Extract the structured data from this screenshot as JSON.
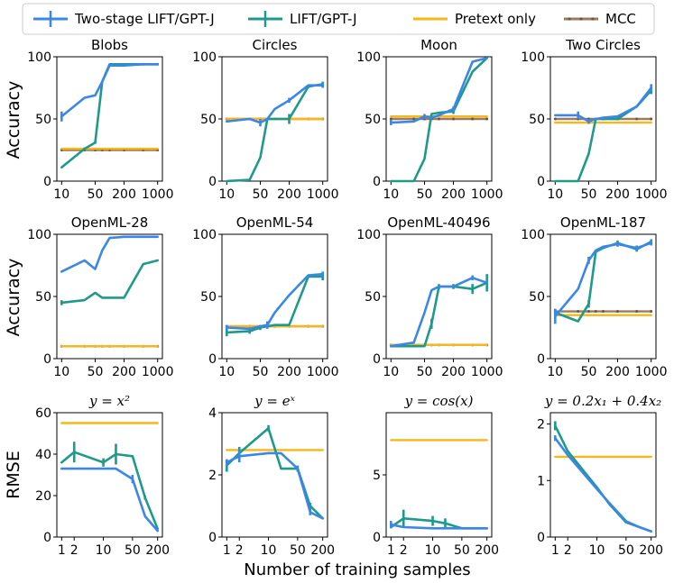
{
  "colors": {
    "two_stage": "#3b87e8",
    "lift": "#1f9a8a",
    "pretext": "#f6b718",
    "mcc": "#9a7a60"
  },
  "legend": {
    "items": [
      {
        "key": "two_stage",
        "label": "Two-stage LIFT/GPT-J",
        "marker": "errorbar-line"
      },
      {
        "key": "lift",
        "label": "LIFT/GPT-J",
        "marker": "errorbar-line"
      },
      {
        "key": "pretext",
        "label": "Pretext only",
        "marker": "line"
      },
      {
        "key": "mcc",
        "label": "MCC",
        "marker": "dotted-line"
      }
    ]
  },
  "row_ylabels": [
    "Accuracy",
    "Accuracy",
    "RMSE"
  ],
  "xlabel": "Number of training samples",
  "chart_data": [
    {
      "type": "line",
      "title": "Blobs",
      "row": 0,
      "col": 0,
      "x": [
        10,
        30,
        50,
        70,
        100,
        200,
        500,
        1000
      ],
      "xticks": [
        10,
        50,
        200,
        1000
      ],
      "ylim": [
        0,
        100
      ],
      "yticks": [
        0,
        50,
        100
      ],
      "series": [
        {
          "key": "two_stage",
          "values": [
            52,
            67,
            69,
            80,
            93,
            93,
            94,
            94
          ],
          "err": [
            4,
            0,
            0,
            0,
            1,
            1,
            1,
            1
          ]
        },
        {
          "key": "lift",
          "values": [
            11,
            26,
            31,
            80,
            94,
            94,
            94,
            94
          ],
          "err": [
            0,
            1,
            1,
            0,
            0,
            0,
            0,
            0
          ]
        },
        {
          "key": "pretext",
          "values": [
            26,
            26,
            26,
            26,
            26,
            26,
            26,
            26
          ]
        },
        {
          "key": "mcc",
          "values": [
            25,
            25,
            25,
            25,
            25,
            25,
            25,
            25
          ]
        }
      ]
    },
    {
      "type": "line",
      "title": "Circles",
      "row": 0,
      "col": 1,
      "x": [
        10,
        30,
        50,
        70,
        100,
        200,
        500,
        1000
      ],
      "xticks": [
        10,
        50,
        200,
        1000
      ],
      "ylim": [
        0,
        100
      ],
      "yticks": [
        0,
        50,
        100
      ],
      "series": [
        {
          "key": "two_stage",
          "values": [
            48,
            50,
            47,
            50,
            58,
            65,
            77,
            77
          ],
          "err": [
            0,
            0,
            3,
            0,
            0,
            2,
            0,
            2
          ]
        },
        {
          "key": "lift",
          "values": [
            0,
            1,
            19,
            50,
            50,
            50,
            76,
            78
          ],
          "err": [
            0,
            0,
            0,
            0,
            0,
            4,
            1,
            2
          ]
        },
        {
          "key": "pretext",
          "values": [
            50,
            50,
            50,
            50,
            50,
            50,
            50,
            50
          ]
        },
        {
          "key": "mcc",
          "values": [
            50,
            50,
            50,
            50,
            50,
            50,
            50,
            50
          ]
        }
      ]
    },
    {
      "type": "line",
      "title": "Moon",
      "row": 0,
      "col": 2,
      "x": [
        10,
        30,
        50,
        70,
        100,
        200,
        500,
        1000
      ],
      "xticks": [
        10,
        50,
        200,
        1000
      ],
      "ylim": [
        0,
        100
      ],
      "yticks": [
        0,
        50,
        100
      ],
      "series": [
        {
          "key": "two_stage",
          "values": [
            47,
            48,
            52,
            51,
            53,
            58,
            96,
            99
          ],
          "err": [
            2,
            0,
            2,
            0,
            0,
            2,
            0,
            0
          ]
        },
        {
          "key": "lift",
          "values": [
            0,
            0,
            18,
            54,
            55,
            56,
            88,
            99
          ],
          "err": [
            0,
            0,
            0,
            0,
            0,
            2,
            0,
            0
          ]
        },
        {
          "key": "pretext",
          "values": [
            52,
            52,
            52,
            52,
            52,
            52,
            52,
            52
          ]
        },
        {
          "key": "mcc",
          "values": [
            50,
            50,
            50,
            50,
            50,
            50,
            50,
            50
          ]
        }
      ]
    },
    {
      "type": "line",
      "title": "Two Circles",
      "row": 0,
      "col": 3,
      "x": [
        10,
        30,
        50,
        70,
        100,
        200,
        500,
        1000
      ],
      "xticks": [
        10,
        50,
        200,
        1000
      ],
      "ylim": [
        0,
        100
      ],
      "yticks": [
        0,
        50,
        100
      ],
      "series": [
        {
          "key": "two_stage",
          "values": [
            53,
            53,
            48,
            50,
            51,
            52,
            60,
            75
          ],
          "err": [
            0,
            3,
            2,
            0,
            0,
            0,
            0,
            3
          ]
        },
        {
          "key": "lift",
          "values": [
            0,
            0,
            22,
            50,
            50,
            50,
            60,
            73
          ],
          "err": [
            0,
            0,
            0,
            0,
            0,
            0,
            0,
            3
          ]
        },
        {
          "key": "pretext",
          "values": [
            47,
            47,
            47,
            47,
            47,
            47,
            47,
            47
          ]
        },
        {
          "key": "mcc",
          "values": [
            50,
            50,
            50,
            50,
            50,
            50,
            50,
            50
          ]
        }
      ]
    },
    {
      "type": "line",
      "title": "OpenML-28",
      "row": 1,
      "col": 0,
      "x": [
        10,
        30,
        50,
        70,
        100,
        200,
        500,
        1000
      ],
      "xticks": [
        10,
        50,
        200,
        1000
      ],
      "ylim": [
        0,
        100
      ],
      "yticks": [
        0,
        50,
        100
      ],
      "series": [
        {
          "key": "two_stage",
          "values": [
            70,
            79,
            72,
            87,
            97,
            98,
            98,
            98
          ],
          "err": [
            0,
            0,
            0,
            0,
            0,
            0,
            0,
            0
          ]
        },
        {
          "key": "lift",
          "values": [
            45,
            47,
            53,
            49,
            49,
            49,
            76,
            79
          ],
          "err": [
            2,
            0,
            0,
            0,
            0,
            0,
            0,
            0
          ]
        },
        {
          "key": "pretext",
          "values": [
            10,
            10,
            10,
            10,
            10,
            10,
            10,
            10
          ]
        },
        {
          "key": "mcc",
          "values": [
            10,
            10,
            10,
            10,
            10,
            10,
            10,
            10
          ]
        }
      ]
    },
    {
      "type": "line",
      "title": "OpenML-54",
      "row": 1,
      "col": 1,
      "x": [
        10,
        30,
        50,
        70,
        100,
        200,
        500,
        1000
      ],
      "xticks": [
        10,
        50,
        200,
        1000
      ],
      "ylim": [
        0,
        100
      ],
      "yticks": [
        0,
        50,
        100
      ],
      "series": [
        {
          "key": "two_stage",
          "values": [
            25,
            24,
            26,
            27,
            37,
            51,
            67,
            68
          ],
          "err": [
            2,
            0,
            0,
            3,
            0,
            0,
            0,
            2
          ]
        },
        {
          "key": "lift",
          "values": [
            21,
            22,
            25,
            26,
            27,
            27,
            66,
            66
          ],
          "err": [
            3,
            2,
            2,
            0,
            0,
            0,
            0,
            3
          ]
        },
        {
          "key": "pretext",
          "values": [
            26,
            26,
            26,
            26,
            26,
            26,
            26,
            26
          ]
        },
        {
          "key": "mcc",
          "values": [
            26,
            26,
            26,
            26,
            26,
            26,
            26,
            26
          ]
        }
      ]
    },
    {
      "type": "line",
      "title": "OpenML-40496",
      "row": 1,
      "col": 2,
      "x": [
        10,
        30,
        50,
        70,
        100,
        200,
        500,
        1000
      ],
      "xticks": [
        10,
        50,
        200,
        1000
      ],
      "ylim": [
        0,
        100
      ],
      "yticks": [
        0,
        50,
        100
      ],
      "series": [
        {
          "key": "two_stage",
          "values": [
            10,
            13,
            37,
            55,
            58,
            58,
            65,
            61
          ],
          "err": [
            0,
            0,
            0,
            0,
            0,
            0,
            2,
            2
          ]
        },
        {
          "key": "lift",
          "values": [
            10,
            10,
            10,
            28,
            58,
            58,
            56,
            61
          ],
          "err": [
            0,
            0,
            0,
            4,
            2,
            2,
            4,
            7
          ]
        },
        {
          "key": "pretext",
          "values": [
            11,
            11,
            11,
            11,
            11,
            11,
            11,
            11
          ]
        },
        {
          "key": "mcc",
          "values": [
            11,
            11,
            11,
            11,
            11,
            11,
            11,
            11
          ]
        }
      ]
    },
    {
      "type": "line",
      "title": "OpenML-187",
      "row": 1,
      "col": 3,
      "x": [
        10,
        30,
        50,
        70,
        100,
        200,
        500,
        1000
      ],
      "xticks": [
        10,
        50,
        200,
        1000
      ],
      "ylim": [
        0,
        100
      ],
      "yticks": [
        0,
        50,
        100
      ],
      "series": [
        {
          "key": "two_stage",
          "values": [
            34,
            56,
            79,
            87,
            90,
            92,
            89,
            93
          ],
          "err": [
            6,
            0,
            3,
            0,
            0,
            2,
            2,
            2
          ]
        },
        {
          "key": "lift",
          "values": [
            37,
            30,
            44,
            86,
            89,
            93,
            88,
            94
          ],
          "err": [
            3,
            0,
            3,
            0,
            0,
            2,
            2,
            2
          ]
        },
        {
          "key": "pretext",
          "values": [
            35,
            35,
            35,
            35,
            35,
            35,
            35,
            35
          ]
        },
        {
          "key": "mcc",
          "values": [
            38,
            38,
            38,
            38,
            38,
            38,
            38,
            38
          ]
        }
      ]
    },
    {
      "type": "line",
      "title": "y = x²",
      "row": 2,
      "col": 0,
      "x": [
        1,
        2,
        10,
        20,
        50,
        100,
        200
      ],
      "xticks": [
        1,
        2,
        10,
        50,
        200
      ],
      "ylim": [
        0,
        60
      ],
      "yticks": [
        0,
        20,
        40,
        60
      ],
      "series": [
        {
          "key": "two_stage",
          "values": [
            33,
            33,
            33,
            33,
            28,
            10,
            3
          ],
          "err": [
            0,
            0,
            0,
            0,
            2,
            0,
            0
          ]
        },
        {
          "key": "lift",
          "values": [
            36,
            41,
            36,
            40,
            39,
            19,
            4
          ],
          "err": [
            0,
            5,
            2,
            5,
            0,
            1,
            0
          ]
        },
        {
          "key": "pretext",
          "values": [
            55,
            55,
            55,
            55,
            55,
            55,
            55
          ]
        }
      ]
    },
    {
      "type": "line",
      "title": "y = eˣ",
      "row": 2,
      "col": 1,
      "x": [
        1,
        2,
        10,
        20,
        50,
        100,
        200
      ],
      "xticks": [
        1,
        2,
        10,
        50,
        200
      ],
      "ylim": [
        0,
        4
      ],
      "yticks": [
        0,
        2,
        4
      ],
      "series": [
        {
          "key": "two_stage",
          "values": [
            2.4,
            2.6,
            2.7,
            2.7,
            2.2,
            0.8,
            0.6
          ],
          "err": [
            0.1,
            0.2,
            0,
            0,
            0.1,
            0.1,
            0
          ]
        },
        {
          "key": "lift",
          "values": [
            2.3,
            2.7,
            3.5,
            2.2,
            2.2,
            1.0,
            0.6
          ],
          "err": [
            0.2,
            0.2,
            0.1,
            0,
            0,
            0.1,
            0
          ]
        },
        {
          "key": "pretext",
          "values": [
            2.8,
            2.8,
            2.8,
            2.8,
            2.8,
            2.8,
            2.8
          ]
        }
      ]
    },
    {
      "type": "line",
      "title": "y = cos(x)",
      "row": 2,
      "col": 2,
      "x": [
        1,
        2,
        10,
        20,
        50,
        100,
        200
      ],
      "xticks": [
        1,
        2,
        10,
        50,
        200
      ],
      "ylim": [
        0,
        10
      ],
      "yticks": [
        0,
        5
      ],
      "series": [
        {
          "key": "two_stage",
          "values": [
            1.0,
            0.8,
            0.7,
            0.7,
            0.7,
            0.7,
            0.7
          ],
          "err": [
            0.3,
            0,
            0,
            0,
            0,
            0,
            0
          ]
        },
        {
          "key": "lift",
          "values": [
            0.8,
            1.5,
            1.3,
            1.1,
            0.7,
            0.7,
            0.7
          ],
          "err": [
            0,
            0.7,
            0.4,
            0.4,
            0,
            0,
            0
          ]
        },
        {
          "key": "pretext",
          "values": [
            7.8,
            7.8,
            7.8,
            7.8,
            7.8,
            7.8,
            7.8
          ]
        }
      ]
    },
    {
      "type": "line",
      "title": "y = 0.2x₁ + 0.4x₂",
      "row": 2,
      "col": 3,
      "x": [
        1,
        2,
        10,
        20,
        50,
        100,
        200
      ],
      "xticks": [
        1,
        2,
        10,
        50,
        200
      ],
      "ylim": [
        0,
        2.2
      ],
      "yticks": [
        0,
        1,
        2
      ],
      "series": [
        {
          "key": "two_stage",
          "values": [
            1.75,
            1.45,
            0.85,
            0.6,
            0.28,
            0.18,
            0.1
          ],
          "err": [
            0.05,
            0,
            0,
            0,
            0,
            0,
            0
          ]
        },
        {
          "key": "lift",
          "values": [
            1.97,
            1.52,
            0.88,
            0.58,
            0.26,
            0.18,
            0.1
          ],
          "err": [
            0.08,
            0,
            0,
            0,
            0,
            0,
            0
          ]
        },
        {
          "key": "pretext",
          "values": [
            1.42,
            1.42,
            1.42,
            1.42,
            1.42,
            1.42,
            1.42
          ]
        }
      ]
    }
  ]
}
